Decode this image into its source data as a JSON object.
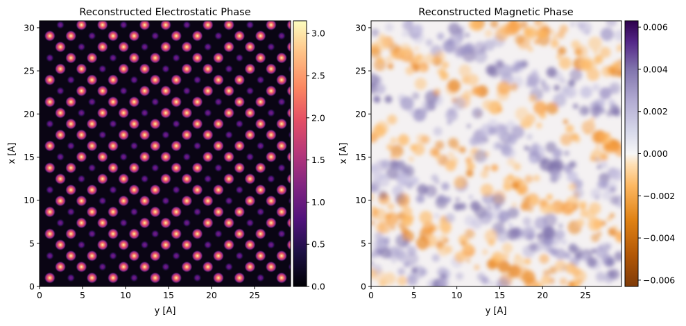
{
  "chart_data": [
    {
      "type": "heatmap",
      "title": "Reconstructed Electrostatic Phase",
      "xlabel": "y [A]",
      "ylabel": "x [A]",
      "xlim": [
        0,
        29.2
      ],
      "ylim": [
        0,
        30.8
      ],
      "xticks": [
        0,
        5,
        10,
        15,
        20,
        25
      ],
      "yticks": [
        0,
        5,
        10,
        15,
        20,
        25,
        30
      ],
      "colormap": "magma",
      "clim": [
        0,
        3.15
      ],
      "colorbar_ticks": [
        0.0,
        0.5,
        1.0,
        1.5,
        2.0,
        2.5,
        3.0
      ],
      "lattice": {
        "description": "hexagonal atomic columns, bright sites alternating with dimmer sites",
        "row_spacing_x": 2.55,
        "column_spacing_y": 2.45,
        "bright_peak": 2.2,
        "dim_peak": 0.9
      }
    },
    {
      "type": "heatmap",
      "title": "Reconstructed Magnetic Phase",
      "xlabel": "y [A]",
      "ylabel": "x [A]",
      "xlim": [
        0,
        29.2
      ],
      "ylim": [
        0,
        30.8
      ],
      "xticks": [
        0,
        5,
        10,
        15,
        20,
        25
      ],
      "yticks": [
        0,
        5,
        10,
        15,
        20,
        25,
        30
      ],
      "colormap": "PuOr",
      "clim": [
        -0.0063,
        0.0063
      ],
      "colorbar_ticks": [
        -0.006,
        -0.004,
        -0.002,
        0.0,
        0.002,
        0.004,
        0.006
      ],
      "texture": "noisy diagonal banding, amplitude ~0.004"
    }
  ]
}
